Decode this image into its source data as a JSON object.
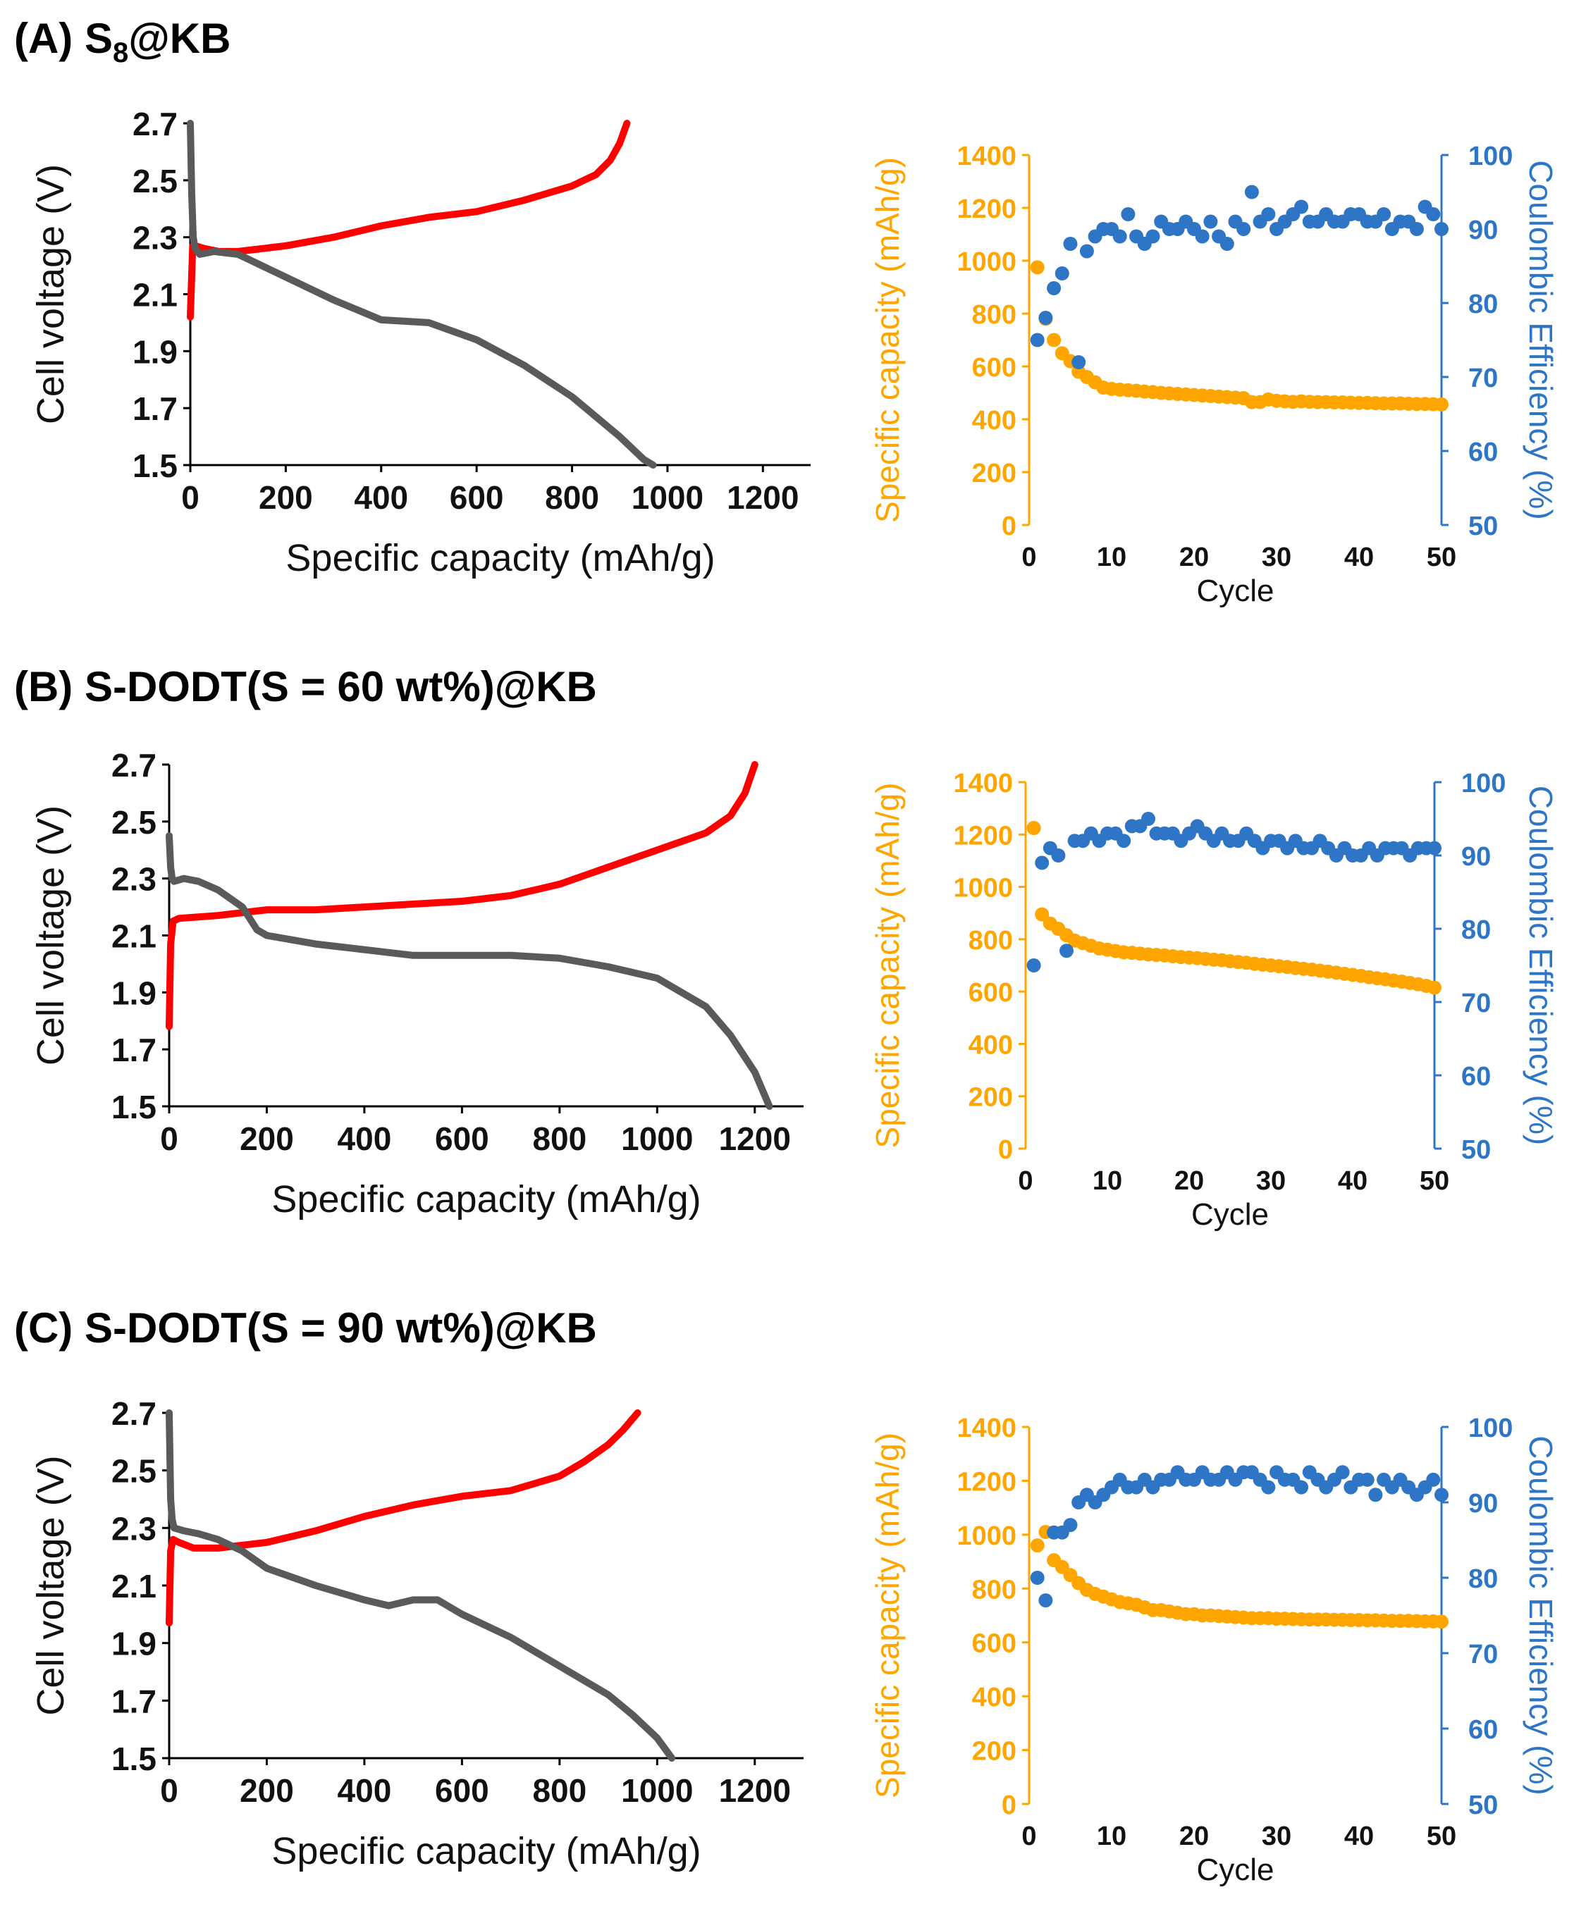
{
  "colors": {
    "charge": "#ff0000",
    "discharge": "#5a5a5a",
    "capacity": "#ffa500",
    "efficiency": "#2e75c5",
    "axis": "#000000"
  },
  "panels": [
    {
      "label_prefix": "(A) S",
      "label_sub": "8",
      "label_suffix": "@KB",
      "voltage_chart": {
        "type": "line",
        "xlabel": "Specific capacity (mAh/g)",
        "ylabel": "Cell voltage (V)",
        "xlim": [
          0,
          1300
        ],
        "ylim": [
          1.5,
          2.7
        ],
        "xticks": [
          "0",
          "200",
          "400",
          "600",
          "800",
          "1000",
          "1200"
        ],
        "yticks": [
          "1.5",
          "1.7",
          "1.9",
          "2.1",
          "2.3",
          "2.5",
          "2.7"
        ],
        "series": [
          {
            "name": "charge",
            "x": [
              0,
              5,
              10,
              30,
              60,
              100,
              200,
              300,
              400,
              500,
              600,
              700,
              800,
              850,
              880,
              900,
              915
            ],
            "y": [
              2.02,
              2.27,
              2.27,
              2.26,
              2.25,
              2.25,
              2.27,
              2.3,
              2.34,
              2.37,
              2.39,
              2.43,
              2.48,
              2.52,
              2.57,
              2.63,
              2.7
            ]
          },
          {
            "name": "discharge",
            "x": [
              0,
              3,
              6,
              10,
              20,
              50,
              100,
              200,
              300,
              400,
              500,
              600,
              700,
              800,
              900,
              950,
              970
            ],
            "y": [
              2.7,
              2.45,
              2.3,
              2.26,
              2.24,
              2.25,
              2.24,
              2.16,
              2.08,
              2.01,
              2.0,
              1.94,
              1.85,
              1.74,
              1.6,
              1.52,
              1.5
            ]
          }
        ]
      },
      "cycle_chart": {
        "type": "scatter",
        "xlabel": "Cycle",
        "ylabel_left": "Specific capacity (mAh/g)",
        "ylabel_right": "Coulombic Efficiency (%)",
        "xlim": [
          0,
          50
        ],
        "ylim_left": [
          0,
          1400
        ],
        "ylim_right": [
          50,
          100
        ],
        "xticks": [
          "0",
          "10",
          "20",
          "30",
          "40",
          "50"
        ],
        "yticks_left": [
          "0",
          "200",
          "400",
          "600",
          "800",
          "1000",
          "1200",
          "1400"
        ],
        "yticks_right": [
          "50",
          "60",
          "70",
          "80",
          "90",
          "100"
        ],
        "capacity": [
          975,
          780,
          700,
          650,
          620,
          580,
          560,
          540,
          520,
          515,
          512,
          510,
          508,
          505,
          503,
          500,
          498,
          496,
          494,
          492,
          490,
          488,
          486,
          484,
          482,
          480,
          465,
          465,
          475,
          470,
          468,
          466,
          468,
          466,
          465,
          465,
          464,
          464,
          463,
          462,
          462,
          461,
          460,
          460,
          460,
          459,
          458,
          458,
          457,
          456
        ],
        "efficiency": [
          75,
          78,
          82,
          84,
          88,
          72,
          87,
          89,
          90,
          90,
          89,
          92,
          89,
          88,
          89,
          91,
          90,
          90,
          91,
          90,
          89,
          91,
          89,
          88,
          91,
          90,
          95,
          91,
          92,
          90,
          91,
          92,
          93,
          91,
          91,
          92,
          91,
          91,
          92,
          92,
          91,
          91,
          92,
          90,
          91,
          91,
          90,
          93,
          92,
          90
        ]
      }
    },
    {
      "label_prefix": "(B) S-DODT(S = 60 wt%)@KB",
      "label_sub": "",
      "label_suffix": "",
      "voltage_chart": {
        "type": "line",
        "xlabel": "Specific capacity (mAh/g)",
        "ylabel": "Cell voltage (V)",
        "xlim": [
          0,
          1300
        ],
        "ylim": [
          1.5,
          2.7
        ],
        "xticks": [
          "0",
          "200",
          "400",
          "600",
          "800",
          "1000",
          "1200"
        ],
        "yticks": [
          "1.5",
          "1.7",
          "1.9",
          "2.1",
          "2.3",
          "2.5",
          "2.7"
        ],
        "series": [
          {
            "name": "charge",
            "x": [
              0,
              3,
              8,
              20,
              100,
              200,
              300,
              400,
              500,
              600,
              700,
              800,
              900,
              1000,
              1100,
              1150,
              1180,
              1200
            ],
            "y": [
              1.78,
              2.07,
              2.15,
              2.16,
              2.17,
              2.19,
              2.19,
              2.2,
              2.21,
              2.22,
              2.24,
              2.28,
              2.34,
              2.4,
              2.46,
              2.52,
              2.6,
              2.7
            ]
          },
          {
            "name": "discharge",
            "x": [
              0,
              3,
              6,
              10,
              30,
              60,
              100,
              150,
              180,
              200,
              300,
              400,
              500,
              600,
              700,
              800,
              900,
              1000,
              1100,
              1150,
              1200,
              1230
            ],
            "y": [
              2.45,
              2.34,
              2.3,
              2.29,
              2.3,
              2.29,
              2.26,
              2.2,
              2.12,
              2.1,
              2.07,
              2.05,
              2.03,
              2.03,
              2.03,
              2.02,
              1.99,
              1.95,
              1.85,
              1.75,
              1.62,
              1.5
            ]
          }
        ]
      },
      "cycle_chart": {
        "type": "scatter",
        "xlabel": "Cycle",
        "ylabel_left": "Specific capacity (mAh/g)",
        "ylabel_right": "Coulombic Efficiency (%)",
        "xlim": [
          0,
          50
        ],
        "ylim_left": [
          0,
          1400
        ],
        "ylim_right": [
          50,
          100
        ],
        "xticks": [
          "0",
          "10",
          "20",
          "30",
          "40",
          "50"
        ],
        "yticks_left": [
          "0",
          "200",
          "400",
          "600",
          "800",
          "1000",
          "1200",
          "1400"
        ],
        "yticks_right": [
          "50",
          "60",
          "70",
          "80",
          "90",
          "100"
        ],
        "capacity": [
          1225,
          895,
          860,
          840,
          815,
          795,
          785,
          775,
          765,
          760,
          755,
          750,
          748,
          745,
          742,
          740,
          738,
          735,
          732,
          730,
          728,
          725,
          722,
          720,
          716,
          713,
          710,
          706,
          703,
          700,
          697,
          694,
          690,
          687,
          684,
          680,
          676,
          672,
          668,
          664,
          660,
          655,
          651,
          647,
          642,
          638,
          633,
          628,
          622,
          615
        ],
        "efficiency": [
          75,
          89,
          91,
          90,
          77,
          92,
          92,
          93,
          92,
          93,
          93,
          92,
          94,
          94,
          95,
          93,
          93,
          93,
          92,
          93,
          94,
          93,
          92,
          93,
          92,
          92,
          93,
          92,
          91,
          92,
          92,
          91,
          92,
          91,
          91,
          92,
          91,
          90,
          91,
          90,
          90,
          91,
          90,
          91,
          91,
          91,
          90,
          91,
          91,
          91
        ]
      }
    },
    {
      "label_prefix": "(C) S-DODT(S = 90 wt%)@KB",
      "label_sub": "",
      "label_suffix": "",
      "voltage_chart": {
        "type": "line",
        "xlabel": "Specific capacity (mAh/g)",
        "ylabel": "Cell voltage (V)",
        "xlim": [
          0,
          1300
        ],
        "ylim": [
          1.5,
          2.7
        ],
        "xticks": [
          "0",
          "200",
          "400",
          "600",
          "800",
          "1000",
          "1200"
        ],
        "yticks": [
          "1.5",
          "1.7",
          "1.9",
          "2.1",
          "2.3",
          "2.5",
          "2.7"
        ],
        "series": [
          {
            "name": "charge",
            "x": [
              0,
              3,
              8,
              20,
              50,
              100,
              150,
              200,
              300,
              400,
              500,
              600,
              700,
              800,
              850,
              900,
              930,
              960
            ],
            "y": [
              1.97,
              2.22,
              2.26,
              2.25,
              2.23,
              2.23,
              2.24,
              2.25,
              2.29,
              2.34,
              2.38,
              2.41,
              2.43,
              2.48,
              2.53,
              2.59,
              2.64,
              2.7
            ]
          },
          {
            "name": "discharge",
            "x": [
              0,
              3,
              6,
              10,
              30,
              60,
              100,
              150,
              200,
              300,
              400,
              450,
              500,
              550,
              600,
              700,
              800,
              900,
              950,
              1000,
              1030
            ],
            "y": [
              2.7,
              2.4,
              2.33,
              2.3,
              2.29,
              2.28,
              2.26,
              2.22,
              2.16,
              2.1,
              2.05,
              2.03,
              2.05,
              2.05,
              2.0,
              1.92,
              1.82,
              1.72,
              1.65,
              1.57,
              1.5
            ]
          }
        ]
      },
      "cycle_chart": {
        "type": "scatter",
        "xlabel": "Cycle",
        "ylabel_left": "Specific capacity (mAh/g)",
        "ylabel_right": "Coulombic Efficiency (%)",
        "xlim": [
          0,
          50
        ],
        "ylim_left": [
          0,
          1400
        ],
        "ylim_right": [
          50,
          100
        ],
        "xticks": [
          "0",
          "10",
          "20",
          "30",
          "40",
          "50"
        ],
        "yticks_left": [
          "0",
          "200",
          "400",
          "600",
          "800",
          "1000",
          "1200",
          "1400"
        ],
        "yticks_right": [
          "50",
          "60",
          "70",
          "80",
          "90",
          "100"
        ],
        "capacity": [
          960,
          1010,
          905,
          880,
          850,
          820,
          795,
          780,
          770,
          760,
          750,
          745,
          740,
          730,
          720,
          720,
          715,
          710,
          705,
          705,
          700,
          700,
          698,
          696,
          694,
          692,
          690,
          690,
          690,
          688,
          688,
          687,
          686,
          685,
          685,
          685,
          684,
          684,
          683,
          683,
          682,
          682,
          681,
          680,
          680,
          680,
          679,
          678,
          678,
          677
        ],
        "efficiency": [
          80,
          77,
          86,
          86,
          87,
          90,
          91,
          90,
          91,
          92,
          93,
          92,
          92,
          93,
          92,
          93,
          93,
          94,
          93,
          93,
          94,
          93,
          93,
          94,
          93,
          94,
          94,
          93,
          92,
          94,
          93,
          93,
          92,
          94,
          93,
          92,
          93,
          94,
          92,
          93,
          93,
          91,
          93,
          92,
          93,
          92,
          91,
          92,
          93,
          91
        ]
      }
    }
  ]
}
